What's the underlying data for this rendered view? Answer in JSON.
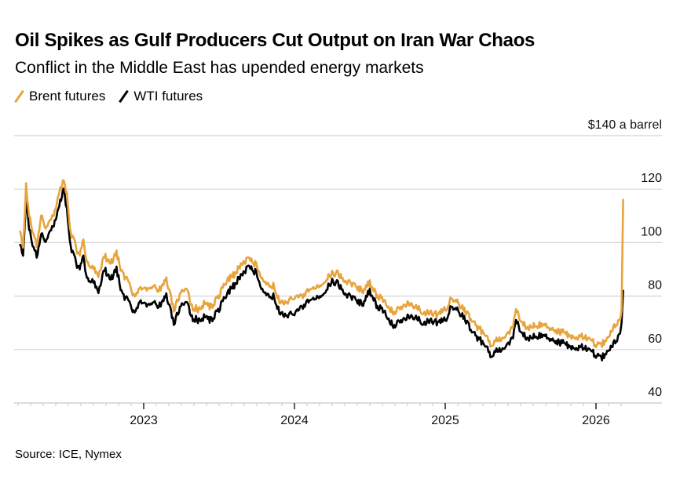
{
  "header": {
    "title": "Oil Spikes as Gulf Producers Cut Output on Iran War Chaos",
    "subtitle": "Conflict in the Middle East has upended energy markets"
  },
  "legend": [
    {
      "label": "Brent futures",
      "color": "#e8a43c"
    },
    {
      "label": "WTI futures",
      "color": "#000000"
    }
  ],
  "footer": {
    "source": "Source: ICE, Nymex"
  },
  "chart_data": {
    "type": "line",
    "title": "Oil Spikes as Gulf Producers Cut Output on Iran War Chaos",
    "subtitle": "Conflict in the Middle East has upended energy markets",
    "xlabel": "",
    "ylabel": "$ a barrel",
    "ylim": [
      40,
      140
    ],
    "yticks": [
      40,
      60,
      80,
      100,
      120,
      140
    ],
    "ytick_labels": [
      "40",
      "60",
      "80",
      "100",
      "120",
      "$140 a barrel"
    ],
    "xlim": [
      2022.13,
      2026.45
    ],
    "xticks": [
      2023,
      2024,
      2025,
      2026
    ],
    "xtick_labels": [
      "2023",
      "2024",
      "2025",
      "2026"
    ],
    "grid": true,
    "legend_position": "top-left",
    "x": [
      2022.18,
      2022.2,
      2022.22,
      2022.24,
      2022.27,
      2022.29,
      2022.32,
      2022.35,
      2022.38,
      2022.41,
      2022.44,
      2022.47,
      2022.49,
      2022.51,
      2022.54,
      2022.57,
      2022.6,
      2022.63,
      2022.66,
      2022.7,
      2022.74,
      2022.78,
      2022.82,
      2022.86,
      2022.9,
      2022.94,
      2022.98,
      2023.02,
      2023.06,
      2023.1,
      2023.15,
      2023.2,
      2023.24,
      2023.28,
      2023.32,
      2023.36,
      2023.4,
      2023.45,
      2023.5,
      2023.55,
      2023.6,
      2023.65,
      2023.7,
      2023.74,
      2023.78,
      2023.82,
      2023.86,
      2023.9,
      2023.95,
      2024.0,
      2024.05,
      2024.1,
      2024.15,
      2024.2,
      2024.25,
      2024.3,
      2024.35,
      2024.4,
      2024.45,
      2024.5,
      2024.55,
      2024.6,
      2024.65,
      2024.7,
      2024.75,
      2024.8,
      2024.85,
      2024.9,
      2024.95,
      2025.0,
      2025.04,
      2025.08,
      2025.12,
      2025.17,
      2025.22,
      2025.26,
      2025.3,
      2025.34,
      2025.38,
      2025.42,
      2025.45,
      2025.47,
      2025.5,
      2025.55,
      2025.6,
      2025.65,
      2025.7,
      2025.75,
      2025.8,
      2025.85,
      2025.9,
      2025.95,
      2026.0,
      2026.04,
      2026.08,
      2026.11,
      2026.14,
      2026.16,
      2026.17,
      2026.18
    ],
    "series": [
      {
        "name": "Brent futures",
        "values": [
          105,
          97,
          122,
          110,
          103,
          99,
          110,
          105,
          108,
          112,
          119,
          123,
          118,
          105,
          100,
          95,
          100,
          92,
          91,
          88,
          95,
          92,
          96,
          88,
          85,
          79,
          83,
          82,
          84,
          82,
          86,
          75,
          80,
          84,
          76,
          75,
          77,
          76,
          80,
          86,
          88,
          92,
          94,
          92,
          86,
          84,
          84,
          78,
          78,
          79,
          80,
          82,
          83,
          85,
          89,
          88,
          85,
          84,
          82,
          85,
          80,
          78,
          74,
          75,
          77,
          76,
          74,
          74,
          73,
          75,
          79,
          78,
          75,
          72,
          68,
          66,
          62,
          64,
          64,
          66,
          68,
          76,
          70,
          68,
          69,
          70,
          68,
          67,
          66,
          65,
          65,
          64,
          62,
          62,
          64,
          68,
          70,
          71,
          75,
          116
        ]
      },
      {
        "name": "WTI futures",
        "values": [
          100,
          94,
          118,
          105,
          98,
          95,
          103,
          100,
          104,
          108,
          114,
          120,
          112,
          100,
          94,
          90,
          94,
          86,
          86,
          82,
          90,
          86,
          90,
          80,
          78,
          73,
          78,
          76,
          78,
          76,
          80,
          70,
          75,
          79,
          72,
          71,
          72,
          71,
          75,
          81,
          84,
          88,
          91,
          89,
          82,
          80,
          80,
          74,
          73,
          73,
          76,
          78,
          79,
          81,
          86,
          84,
          80,
          79,
          77,
          82,
          76,
          74,
          69,
          70,
          72,
          72,
          70,
          71,
          70,
          71,
          76,
          75,
          72,
          68,
          64,
          62,
          58,
          60,
          60,
          62,
          64,
          72,
          66,
          64,
          65,
          66,
          64,
          63,
          62,
          61,
          61,
          60,
          58,
          57,
          59,
          62,
          64,
          66,
          70,
          82
        ]
      }
    ]
  }
}
